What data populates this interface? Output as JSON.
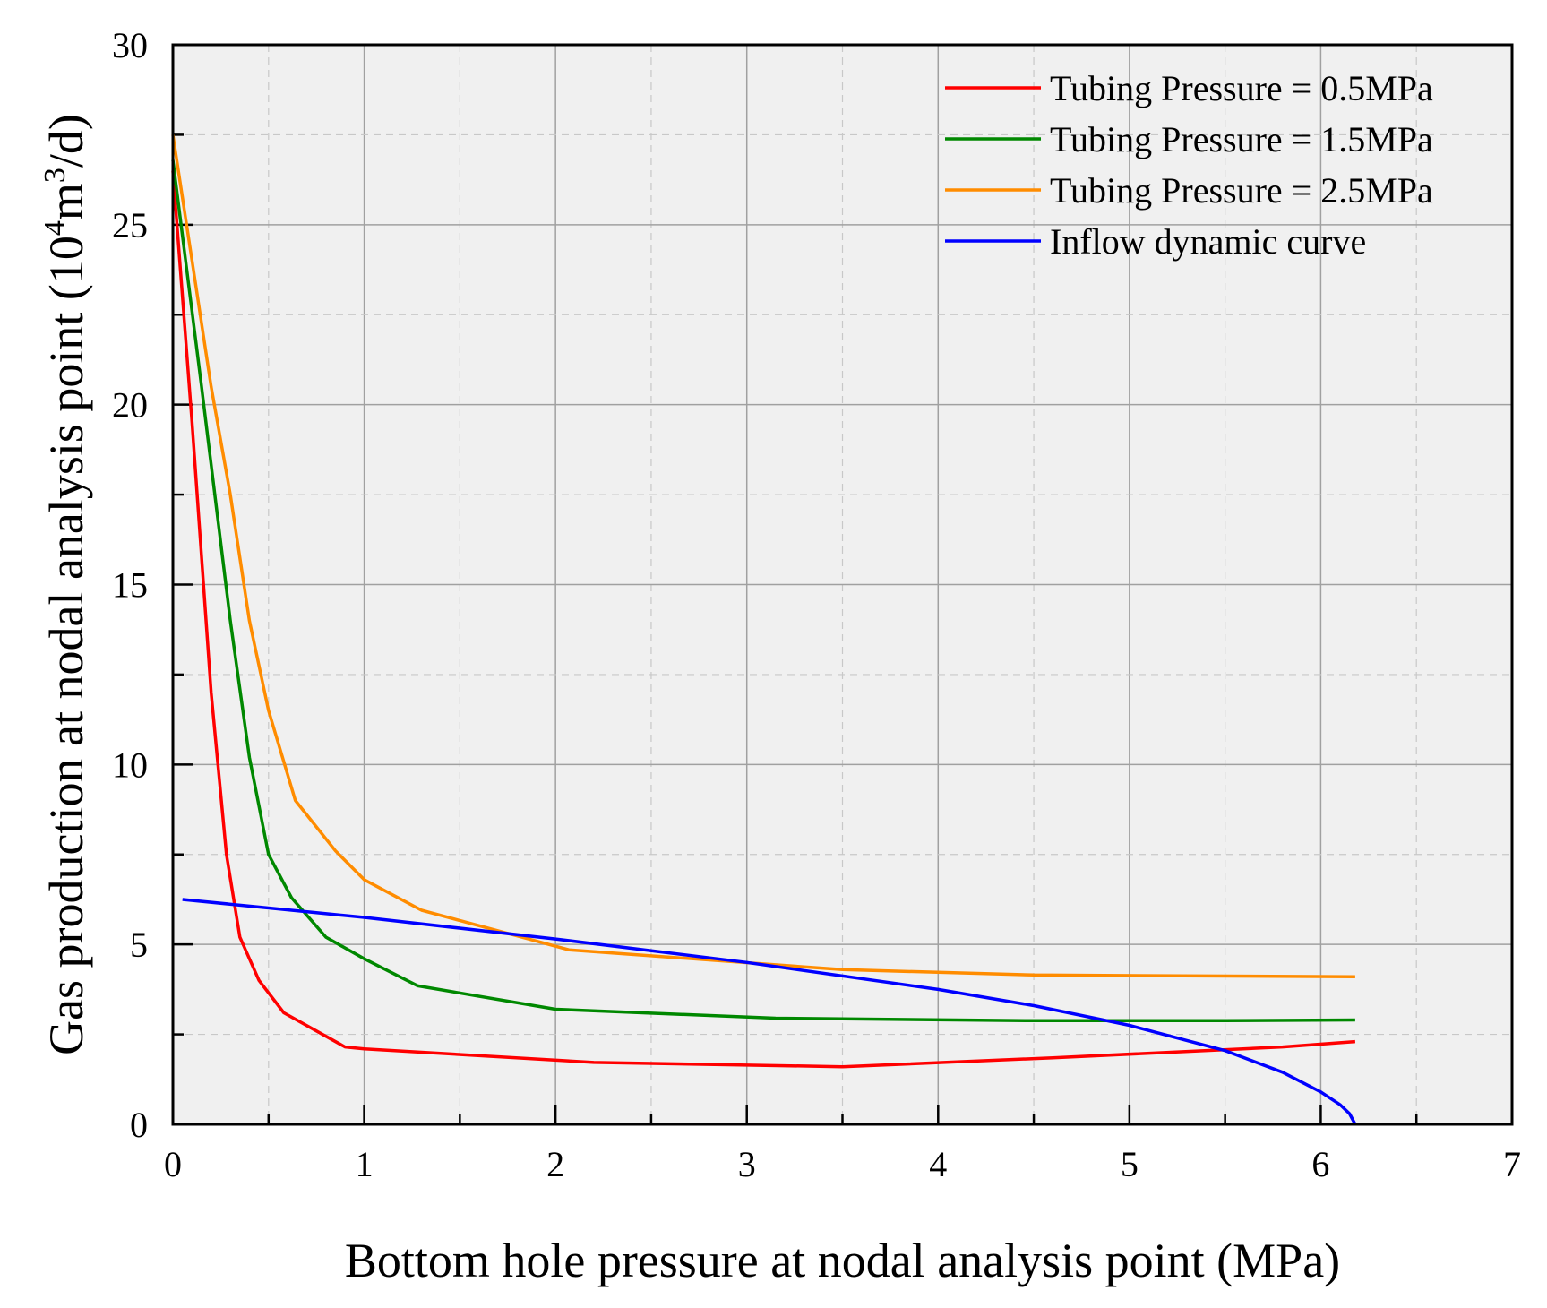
{
  "chart_data": {
    "type": "line",
    "title": "",
    "xlabel": "Bottom hole pressure at nodal analysis point (MPa)",
    "ylabel": {
      "prefix": "Gas production at nodal analysis point (10",
      "sup1": "4",
      "mid": "m",
      "sup2": "3",
      "suffix": "/d)"
    },
    "xlim": [
      0,
      7
    ],
    "ylim": [
      0,
      30
    ],
    "xticks": [
      0,
      1,
      2,
      3,
      4,
      5,
      6,
      7
    ],
    "yticks": [
      0,
      5,
      10,
      15,
      20,
      25,
      30
    ],
    "grid": true,
    "legend_position": "top-right",
    "series": [
      {
        "name": "Tubing Pressure = 0.5MPa",
        "color": "#ff0000",
        "x": [
          0.0,
          0.1,
          0.2,
          0.28,
          0.35,
          0.45,
          0.58,
          0.9,
          1.0,
          2.2,
          3.5,
          4.6,
          5.8,
          6.18
        ],
        "y": [
          26.5,
          19.5,
          12.0,
          7.5,
          5.2,
          4.0,
          3.1,
          2.15,
          2.1,
          1.72,
          1.6,
          1.85,
          2.15,
          2.3
        ]
      },
      {
        "name": "Tubing Pressure = 1.5MPa",
        "color": "#008800",
        "x": [
          0.0,
          0.15,
          0.3,
          0.4,
          0.5,
          0.62,
          0.8,
          1.0,
          1.28,
          2.0,
          3.15,
          4.5,
          5.5,
          6.18
        ],
        "y": [
          26.8,
          20.5,
          14.0,
          10.2,
          7.5,
          6.3,
          5.2,
          4.6,
          3.85,
          3.2,
          2.95,
          2.88,
          2.88,
          2.9
        ]
      },
      {
        "name": "Tubing Pressure = 2.5MPa",
        "color": "#ff8c00",
        "x": [
          0.0,
          0.1,
          0.2,
          0.3,
          0.4,
          0.5,
          0.64,
          0.85,
          1.0,
          1.3,
          2.07,
          3.5,
          4.5,
          6.18
        ],
        "y": [
          27.5,
          24.0,
          20.5,
          17.5,
          14.0,
          11.5,
          9.0,
          7.6,
          6.8,
          5.95,
          4.85,
          4.3,
          4.15,
          4.1
        ]
      },
      {
        "name": "Inflow dynamic curve",
        "color": "#0000ff",
        "x": [
          0.05,
          1.0,
          2.0,
          3.0,
          4.0,
          4.5,
          5.0,
          5.5,
          5.8,
          6.0,
          6.1,
          6.15,
          6.18
        ],
        "y": [
          6.25,
          5.75,
          5.15,
          4.5,
          3.75,
          3.3,
          2.75,
          2.05,
          1.45,
          0.9,
          0.55,
          0.3,
          0.0
        ]
      }
    ]
  }
}
